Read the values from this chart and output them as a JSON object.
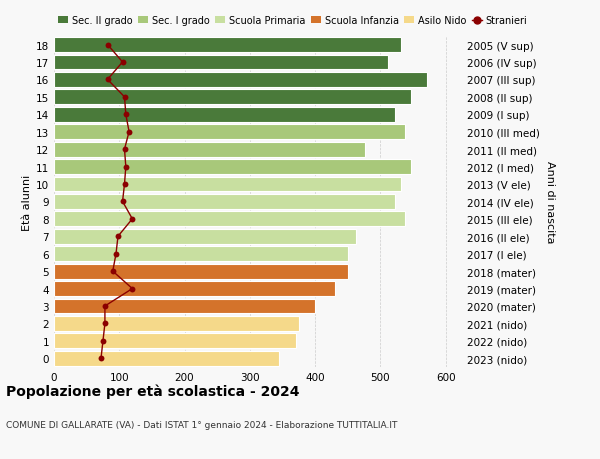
{
  "ages": [
    0,
    1,
    2,
    3,
    4,
    5,
    6,
    7,
    8,
    9,
    10,
    11,
    12,
    13,
    14,
    15,
    16,
    17,
    18
  ],
  "labels_left": [
    "0",
    "1",
    "2",
    "3",
    "4",
    "5",
    "6",
    "7",
    "8",
    "9",
    "10",
    "11",
    "12",
    "13",
    "14",
    "15",
    "16",
    "17",
    "18"
  ],
  "labels_right": [
    "2023 (nido)",
    "2022 (nido)",
    "2021 (nido)",
    "2020 (mater)",
    "2019 (mater)",
    "2018 (mater)",
    "2017 (I ele)",
    "2016 (II ele)",
    "2015 (III ele)",
    "2014 (IV ele)",
    "2013 (V ele)",
    "2012 (I med)",
    "2011 (II med)",
    "2010 (III med)",
    "2009 (I sup)",
    "2008 (II sup)",
    "2007 (III sup)",
    "2006 (IV sup)",
    "2005 (V sup)"
  ],
  "bar_values": [
    345,
    370,
    375,
    400,
    430,
    450,
    450,
    462,
    537,
    522,
    532,
    547,
    477,
    537,
    522,
    547,
    572,
    512,
    532
  ],
  "stranieri": [
    72,
    75,
    78,
    78,
    120,
    90,
    95,
    98,
    120,
    105,
    108,
    110,
    108,
    115,
    110,
    108,
    82,
    105,
    82
  ],
  "bar_colors": [
    "#f5d98a",
    "#f5d98a",
    "#f5d98a",
    "#d4732b",
    "#d4732b",
    "#d4732b",
    "#c8dfa0",
    "#c8dfa0",
    "#c8dfa0",
    "#c8dfa0",
    "#c8dfa0",
    "#a8c87a",
    "#a8c87a",
    "#a8c87a",
    "#4a7a3a",
    "#4a7a3a",
    "#4a7a3a",
    "#4a7a3a",
    "#4a7a3a"
  ],
  "legend_labels": [
    "Sec. II grado",
    "Sec. I grado",
    "Scuola Primaria",
    "Scuola Infanzia",
    "Asilo Nido",
    "Stranieri"
  ],
  "legend_colors": [
    "#4a7a3a",
    "#a8c87a",
    "#c8dfa0",
    "#d4732b",
    "#f5d98a",
    "#8b0000"
  ],
  "title": "Popolazione per età scolastica - 2024",
  "subtitle": "COMUNE DI GALLARATE (VA) - Dati ISTAT 1° gennaio 2024 - Elaborazione TUTTITALIA.IT",
  "ylabel_left": "Età alunni",
  "ylabel_right": "Anni di nascita",
  "xlim": [
    0,
    625
  ],
  "xticks": [
    0,
    100,
    200,
    300,
    400,
    500,
    600
  ],
  "background_color": "#f8f8f8"
}
